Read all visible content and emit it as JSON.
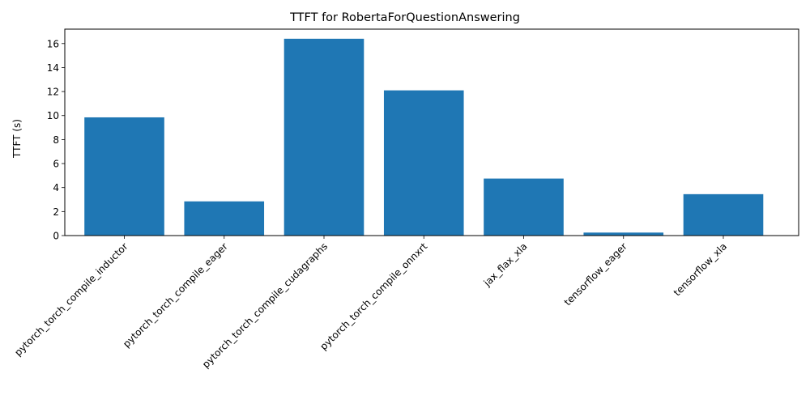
{
  "chart_data": {
    "type": "bar",
    "title": "TTFT for RobertaForQuestionAnswering",
    "xlabel": "",
    "ylabel": "TTFT (s)",
    "categories": [
      "pytorch_torch_compile_inductor",
      "pytorch_torch_compile_eager",
      "pytorch_torch_compile_cudagraphs",
      "pytorch_torch_compile_onnxrt",
      "jax_flax_xla",
      "tensorflow_eager",
      "tensorflow_xla"
    ],
    "values": [
      9.85,
      2.85,
      16.4,
      12.1,
      4.75,
      0.25,
      3.45
    ],
    "ylim": [
      0,
      17.2
    ],
    "yticks": [
      0,
      2,
      4,
      6,
      8,
      10,
      12,
      14,
      16
    ],
    "grid": false,
    "bar_color": "#1f77b4"
  }
}
